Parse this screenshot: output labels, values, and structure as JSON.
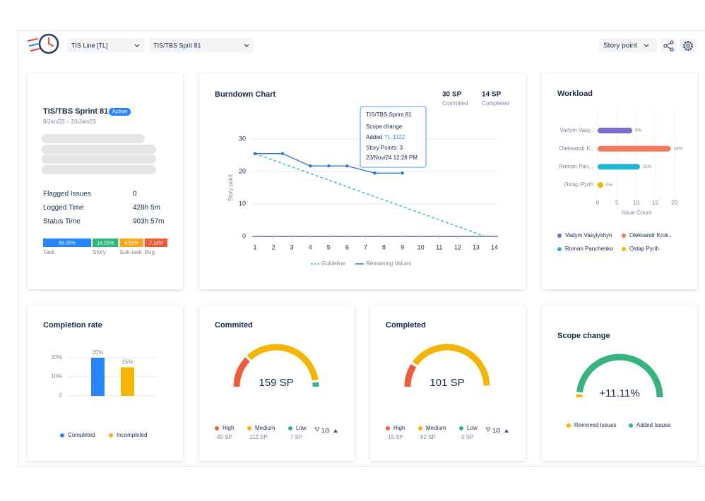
{
  "header": {
    "team_select": "TIS Line [TL]",
    "sprint_select": "TIS/TBS Sprit 81",
    "unit_select": "Story point"
  },
  "sprint": {
    "title": "TIS/TBS Sprint 81",
    "status": "Active",
    "dates": "9/Jan/23 – 23/Jan/23",
    "stats": [
      {
        "label": "Flagged Issues",
        "value": "0"
      },
      {
        "label": "Logged Time",
        "value": "428h 5m"
      },
      {
        "label": "Status Time",
        "value": "903h 57m"
      }
    ],
    "types": [
      {
        "name": "Task",
        "value": 69.05,
        "label": "69.05%",
        "color": "#2684ff"
      },
      {
        "name": "Story",
        "value": 14.29,
        "label": "14.29%",
        "color": "#2fb67c"
      },
      {
        "name": "Sub-task",
        "value": 9.52,
        "label": "9.52%",
        "color": "#f5a623"
      },
      {
        "name": "Bug",
        "value": 7.14,
        "label": "7.14%",
        "color": "#ef5b3a"
      }
    ]
  },
  "burndown": {
    "title": "Burndown Chart",
    "kpis": [
      {
        "value": "30 SP",
        "label": "Commited"
      },
      {
        "value": "14 SP",
        "label": "Completed"
      }
    ],
    "y_label": "Story point",
    "xlim": [
      1,
      14
    ],
    "ylim": [
      0,
      30
    ],
    "xticks": [
      1,
      2,
      3,
      4,
      5,
      6,
      7,
      8,
      9,
      10,
      11,
      12,
      13,
      14
    ],
    "yticks": [
      0,
      10,
      20,
      30
    ],
    "series": [
      {
        "name": "Guideline",
        "color": "#26b5c9",
        "style": "dashed",
        "x": [
          1,
          13.5
        ],
        "values": [
          25.5,
          0
        ]
      },
      {
        "name": "Remaining Values",
        "color": "#2f6fe0",
        "style": "solid",
        "markers": true,
        "x": [
          1,
          2.5,
          4,
          5,
          6,
          7.5,
          9
        ],
        "values": [
          25.5,
          25.5,
          21.7,
          21.7,
          21.7,
          19.5,
          19.5
        ]
      }
    ],
    "tooltip": {
      "title": "TIS/TBS Sprint 81",
      "event": "Scope change",
      "action": "Added",
      "issue": "TL-1122",
      "points": "Story Points: 3",
      "time": "23/Nov/24 12:28 PM"
    }
  },
  "workload": {
    "title": "Workload",
    "x_label": "Issue Count",
    "xlim": [
      0,
      20
    ],
    "xticks": [
      0,
      5,
      10,
      15,
      20
    ],
    "people": [
      {
        "name": "Vadym Vasy..",
        "legend": "Vadym Vasylyshyn",
        "value": 9,
        "label": "9%",
        "color": "#7e6ccc"
      },
      {
        "name": "Oleksandr K..",
        "legend": "Oleksandr Krok..",
        "value": 19,
        "label": "19%",
        "color": "#f47a5a"
      },
      {
        "name": "Roman Pan...",
        "legend": "Roman Panchenko",
        "value": 11,
        "label": "11%",
        "color": "#1fb8d0"
      },
      {
        "name": "Ostap Pyrih",
        "legend": "Ostap Pyrih",
        "value": 0,
        "label": "0%",
        "color": "#f5b400"
      }
    ]
  },
  "completion": {
    "title": "Completion rate",
    "ylim": [
      0,
      20
    ],
    "yticks": [
      0,
      {
        "value": 10,
        "label": "10%"
      },
      {
        "value": 20,
        "label": "20%"
      }
    ],
    "series": [
      {
        "name": "Completed",
        "value": 20,
        "label": "20%",
        "color": "#2684ff"
      },
      {
        "name": "Incompleted",
        "value": 15,
        "label": "15%",
        "color": "#f5b400"
      }
    ]
  },
  "commited": {
    "title": "Commited",
    "total": "159 SP",
    "page": "1/3",
    "segments": [
      {
        "name": "High",
        "value": 40,
        "label": "40 SP",
        "color": "#ef5b3a"
      },
      {
        "name": "Medium",
        "value": 112,
        "label": "112 SP",
        "color": "#f5b400"
      },
      {
        "name": "Low",
        "value": 7,
        "label": "7 SP",
        "color": "#36b37e"
      }
    ]
  },
  "completed": {
    "title": "Completed",
    "total": "101 SP",
    "page": "1/3",
    "segments": [
      {
        "name": "High",
        "value": 19,
        "label": "19 SP",
        "color": "#ef5b3a"
      },
      {
        "name": "Medium",
        "value": 82,
        "label": "82 SP",
        "color": "#f5b400"
      },
      {
        "name": "Low",
        "value": 0,
        "label": "0 SP",
        "color": "#36b37e"
      }
    ]
  },
  "scope": {
    "title": "Scope change",
    "total": "+11.11%",
    "segments": [
      {
        "name": "Removed Issues",
        "value": 3,
        "color": "#f5b400"
      },
      {
        "name": "Added Issues",
        "value": 97,
        "color": "#36b37e"
      }
    ]
  }
}
